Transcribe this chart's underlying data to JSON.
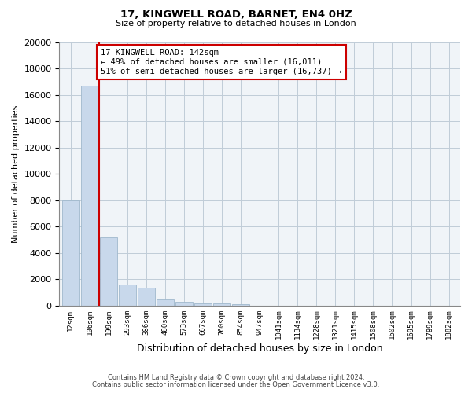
{
  "title1": "17, KINGWELL ROAD, BARNET, EN4 0HZ",
  "title2": "Size of property relative to detached houses in London",
  "xlabel": "Distribution of detached houses by size in London",
  "ylabel": "Number of detached properties",
  "footnote1": "Contains HM Land Registry data © Crown copyright and database right 2024.",
  "footnote2": "Contains public sector information licensed under the Open Government Licence v3.0.",
  "annotation_line1": "17 KINGWELL ROAD: 142sqm",
  "annotation_line2": "← 49% of detached houses are smaller (16,011)",
  "annotation_line3": "51% of semi-detached houses are larger (16,737) →",
  "bar_color": "#c8d8eb",
  "bar_edge_color": "#a0b8cc",
  "property_line_color": "#cc0000",
  "annotation_box_color": "#cc0000",
  "categories": [
    "12sqm",
    "106sqm",
    "199sqm",
    "293sqm",
    "386sqm",
    "480sqm",
    "573sqm",
    "667sqm",
    "760sqm",
    "854sqm",
    "947sqm",
    "1041sqm",
    "1134sqm",
    "1228sqm",
    "1321sqm",
    "1415sqm",
    "1508sqm",
    "1602sqm",
    "1695sqm",
    "1789sqm",
    "1882sqm"
  ],
  "values": [
    8000,
    16700,
    5200,
    1600,
    1350,
    500,
    300,
    200,
    150,
    110,
    0,
    0,
    0,
    0,
    0,
    0,
    0,
    0,
    0,
    0,
    0
  ],
  "ylim": [
    0,
    20000
  ],
  "yticks": [
    0,
    2000,
    4000,
    6000,
    8000,
    10000,
    12000,
    14000,
    16000,
    18000,
    20000
  ],
  "property_line_x": 1.5,
  "bg_color": "#f0f4f8"
}
